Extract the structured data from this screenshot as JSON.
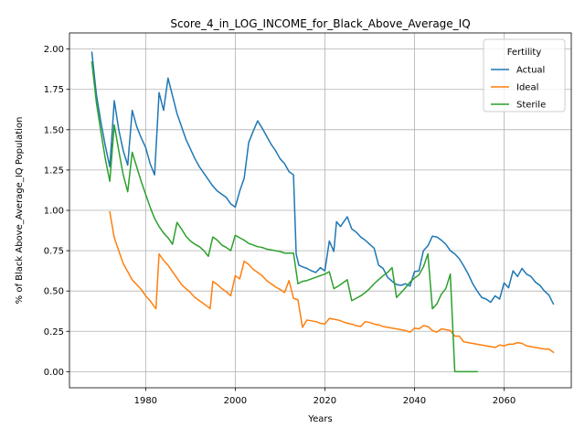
{
  "chart_data": {
    "type": "line",
    "title": "Score_4_in_LOG_INCOME_for_Black_Above_Average_IQ",
    "xlabel": "Years",
    "ylabel": "% of Black Above_Average_IQ Population",
    "xlim": [
      1963,
      2075
    ],
    "ylim": [
      -0.1,
      2.1
    ],
    "xticks": [
      1980,
      2000,
      2020,
      2040,
      2060
    ],
    "yticks": [
      0.0,
      0.25,
      0.5,
      0.75,
      1.0,
      1.25,
      1.5,
      1.75,
      2.0
    ],
    "ytick_labels": [
      "0.00",
      "0.25",
      "0.50",
      "0.75",
      "1.00",
      "1.25",
      "1.50",
      "1.75",
      "2.00"
    ],
    "grid": true,
    "legend": {
      "title": "Fertility",
      "placement": "top-right"
    },
    "series": [
      {
        "name": "Actual",
        "color": "#1f77b4",
        "points": [
          [
            1968,
            1.98
          ],
          [
            1969,
            1.72
          ],
          [
            1970,
            1.55
          ],
          [
            1971,
            1.4
          ],
          [
            1972,
            1.27
          ],
          [
            1973,
            1.68
          ],
          [
            1974,
            1.5
          ],
          [
            1975,
            1.37
          ],
          [
            1976,
            1.28
          ],
          [
            1977,
            1.62
          ],
          [
            1978,
            1.52
          ],
          [
            1979,
            1.45
          ],
          [
            1980,
            1.39
          ],
          [
            1981,
            1.29
          ],
          [
            1982,
            1.22
          ],
          [
            1983,
            1.73
          ],
          [
            1984,
            1.62
          ],
          [
            1985,
            1.82
          ],
          [
            1986,
            1.71
          ],
          [
            1987,
            1.6
          ],
          [
            1988,
            1.52
          ],
          [
            1989,
            1.44
          ],
          [
            1990,
            1.38
          ],
          [
            1991,
            1.32
          ],
          [
            1992,
            1.27
          ],
          [
            1993,
            1.23
          ],
          [
            1994,
            1.19
          ],
          [
            1995,
            1.15
          ],
          [
            1996,
            1.12
          ],
          [
            1997,
            1.1
          ],
          [
            1998,
            1.08
          ],
          [
            1999,
            1.04
          ],
          [
            2000,
            1.02
          ],
          [
            2001,
            1.12
          ],
          [
            2002,
            1.2
          ],
          [
            2003,
            1.42
          ],
          [
            2004,
            1.49
          ],
          [
            2005,
            1.555
          ],
          [
            2006,
            1.51
          ],
          [
            2007,
            1.46
          ],
          [
            2008,
            1.41
          ],
          [
            2009,
            1.37
          ],
          [
            2010,
            1.32
          ],
          [
            2011,
            1.29
          ],
          [
            2012,
            1.24
          ],
          [
            2013,
            1.22
          ],
          [
            2013.6,
            0.73
          ],
          [
            2014.2,
            0.66
          ],
          [
            2015,
            0.65
          ],
          [
            2016,
            0.64
          ],
          [
            2017,
            0.625
          ],
          [
            2018,
            0.615
          ],
          [
            2019,
            0.645
          ],
          [
            2020,
            0.625
          ],
          [
            2021,
            0.81
          ],
          [
            2022,
            0.745
          ],
          [
            2022.6,
            0.93
          ],
          [
            2023.5,
            0.9
          ],
          [
            2024,
            0.92
          ],
          [
            2025,
            0.96
          ],
          [
            2026,
            0.885
          ],
          [
            2027,
            0.865
          ],
          [
            2028,
            0.835
          ],
          [
            2029,
            0.815
          ],
          [
            2030,
            0.79
          ],
          [
            2031,
            0.765
          ],
          [
            2032,
            0.66
          ],
          [
            2033,
            0.64
          ],
          [
            2034,
            0.585
          ],
          [
            2035,
            0.56
          ],
          [
            2036,
            0.54
          ],
          [
            2037,
            0.535
          ],
          [
            2038,
            0.545
          ],
          [
            2039,
            0.53
          ],
          [
            2040,
            0.62
          ],
          [
            2041,
            0.625
          ],
          [
            2042,
            0.75
          ],
          [
            2043,
            0.78
          ],
          [
            2044,
            0.84
          ],
          [
            2045,
            0.835
          ],
          [
            2046,
            0.815
          ],
          [
            2047,
            0.79
          ],
          [
            2048,
            0.75
          ],
          [
            2049,
            0.73
          ],
          [
            2050,
            0.7
          ],
          [
            2051,
            0.655
          ],
          [
            2052,
            0.605
          ],
          [
            2053,
            0.545
          ],
          [
            2054,
            0.5
          ],
          [
            2055,
            0.46
          ],
          [
            2056,
            0.45
          ],
          [
            2057,
            0.43
          ],
          [
            2058,
            0.47
          ],
          [
            2059,
            0.45
          ],
          [
            2060,
            0.55
          ],
          [
            2061,
            0.52
          ],
          [
            2062,
            0.625
          ],
          [
            2063,
            0.59
          ],
          [
            2064,
            0.64
          ],
          [
            2065,
            0.605
          ],
          [
            2066,
            0.59
          ],
          [
            2067,
            0.555
          ],
          [
            2068,
            0.535
          ],
          [
            2069,
            0.5
          ],
          [
            2070,
            0.475
          ],
          [
            2071,
            0.42
          ]
        ]
      },
      {
        "name": "Ideal",
        "color": "#ff7f0e",
        "points": [
          [
            1972,
            0.99
          ],
          [
            1973,
            0.83
          ],
          [
            1974,
            0.75
          ],
          [
            1975,
            0.67
          ],
          [
            1976,
            0.62
          ],
          [
            1977,
            0.57
          ],
          [
            1978,
            0.54
          ],
          [
            1979,
            0.51
          ],
          [
            1980,
            0.47
          ],
          [
            1981,
            0.44
          ],
          [
            1982,
            0.4
          ],
          [
            1982.3,
            0.39
          ],
          [
            1983,
            0.73
          ],
          [
            1984,
            0.69
          ],
          [
            1985,
            0.66
          ],
          [
            1986,
            0.62
          ],
          [
            1987,
            0.58
          ],
          [
            1988,
            0.54
          ],
          [
            1989,
            0.515
          ],
          [
            1990,
            0.49
          ],
          [
            1991,
            0.46
          ],
          [
            1992,
            0.44
          ],
          [
            1993,
            0.42
          ],
          [
            1994,
            0.4
          ],
          [
            1994.4,
            0.39
          ],
          [
            1995,
            0.56
          ],
          [
            1996,
            0.54
          ],
          [
            1997,
            0.515
          ],
          [
            1998,
            0.495
          ],
          [
            1999,
            0.47
          ],
          [
            2000,
            0.595
          ],
          [
            2001,
            0.575
          ],
          [
            2002,
            0.685
          ],
          [
            2003,
            0.665
          ],
          [
            2004,
            0.635
          ],
          [
            2005,
            0.615
          ],
          [
            2006,
            0.595
          ],
          [
            2007,
            0.565
          ],
          [
            2008,
            0.545
          ],
          [
            2009,
            0.525
          ],
          [
            2010,
            0.51
          ],
          [
            2011,
            0.49
          ],
          [
            2012,
            0.565
          ],
          [
            2013,
            0.455
          ],
          [
            2014,
            0.445
          ],
          [
            2015,
            0.275
          ],
          [
            2016,
            0.32
          ],
          [
            2017,
            0.315
          ],
          [
            2018,
            0.31
          ],
          [
            2019,
            0.3
          ],
          [
            2020,
            0.295
          ],
          [
            2021,
            0.33
          ],
          [
            2022,
            0.325
          ],
          [
            2023,
            0.32
          ],
          [
            2024,
            0.31
          ],
          [
            2025,
            0.3
          ],
          [
            2026,
            0.295
          ],
          [
            2027,
            0.285
          ],
          [
            2028,
            0.28
          ],
          [
            2029,
            0.31
          ],
          [
            2030,
            0.305
          ],
          [
            2031,
            0.295
          ],
          [
            2032,
            0.29
          ],
          [
            2033,
            0.28
          ],
          [
            2034,
            0.275
          ],
          [
            2035,
            0.27
          ],
          [
            2036,
            0.265
          ],
          [
            2037,
            0.26
          ],
          [
            2038,
            0.255
          ],
          [
            2039,
            0.245
          ],
          [
            2040,
            0.27
          ],
          [
            2041,
            0.265
          ],
          [
            2042,
            0.285
          ],
          [
            2043,
            0.28
          ],
          [
            2044,
            0.255
          ],
          [
            2045,
            0.245
          ],
          [
            2046,
            0.265
          ],
          [
            2047,
            0.26
          ],
          [
            2048,
            0.255
          ],
          [
            2049,
            0.22
          ],
          [
            2050,
            0.22
          ],
          [
            2051,
            0.185
          ],
          [
            2052,
            0.18
          ],
          [
            2053,
            0.175
          ],
          [
            2054,
            0.17
          ],
          [
            2055,
            0.165
          ],
          [
            2056,
            0.16
          ],
          [
            2057,
            0.155
          ],
          [
            2058,
            0.15
          ],
          [
            2059,
            0.165
          ],
          [
            2060,
            0.16
          ],
          [
            2061,
            0.17
          ],
          [
            2062,
            0.17
          ],
          [
            2063,
            0.18
          ],
          [
            2064,
            0.175
          ],
          [
            2065,
            0.16
          ],
          [
            2066,
            0.155
          ],
          [
            2067,
            0.15
          ],
          [
            2068,
            0.145
          ],
          [
            2069,
            0.14
          ],
          [
            2070,
            0.14
          ],
          [
            2071,
            0.12
          ]
        ]
      },
      {
        "name": "Sterile",
        "color": "#2ca02c",
        "points": [
          [
            1968,
            1.92
          ],
          [
            1969,
            1.67
          ],
          [
            1970,
            1.49
          ],
          [
            1971,
            1.32
          ],
          [
            1972,
            1.18
          ],
          [
            1973,
            1.53
          ],
          [
            1974,
            1.37
          ],
          [
            1975,
            1.22
          ],
          [
            1976,
            1.115
          ],
          [
            1977,
            1.36
          ],
          [
            1978,
            1.27
          ],
          [
            1979,
            1.18
          ],
          [
            1980,
            1.1
          ],
          [
            1981,
            1.02
          ],
          [
            1982,
            0.95
          ],
          [
            1983,
            0.9
          ],
          [
            1984,
            0.86
          ],
          [
            1985,
            0.83
          ],
          [
            1986,
            0.79
          ],
          [
            1987,
            0.925
          ],
          [
            1988,
            0.885
          ],
          [
            1989,
            0.84
          ],
          [
            1990,
            0.81
          ],
          [
            1991,
            0.79
          ],
          [
            1992,
            0.775
          ],
          [
            1993,
            0.75
          ],
          [
            1994,
            0.715
          ],
          [
            1995,
            0.835
          ],
          [
            1996,
            0.815
          ],
          [
            1997,
            0.785
          ],
          [
            1998,
            0.77
          ],
          [
            1999,
            0.75
          ],
          [
            2000,
            0.845
          ],
          [
            2001,
            0.83
          ],
          [
            2002,
            0.815
          ],
          [
            2003,
            0.795
          ],
          [
            2004,
            0.785
          ],
          [
            2005,
            0.775
          ],
          [
            2006,
            0.77
          ],
          [
            2007,
            0.76
          ],
          [
            2008,
            0.755
          ],
          [
            2009,
            0.75
          ],
          [
            2010,
            0.745
          ],
          [
            2011,
            0.735
          ],
          [
            2012,
            0.735
          ],
          [
            2013,
            0.735
          ],
          [
            2014,
            0.545
          ],
          [
            2015,
            0.56
          ],
          [
            2016,
            0.565
          ],
          [
            2017,
            0.575
          ],
          [
            2018,
            0.585
          ],
          [
            2019,
            0.595
          ],
          [
            2020,
            0.605
          ],
          [
            2021,
            0.62
          ],
          [
            2022,
            0.515
          ],
          [
            2023,
            0.53
          ],
          [
            2024,
            0.55
          ],
          [
            2025,
            0.57
          ],
          [
            2026,
            0.44
          ],
          [
            2027,
            0.455
          ],
          [
            2028,
            0.47
          ],
          [
            2029,
            0.49
          ],
          [
            2030,
            0.515
          ],
          [
            2031,
            0.545
          ],
          [
            2032,
            0.57
          ],
          [
            2033,
            0.595
          ],
          [
            2034,
            0.615
          ],
          [
            2035,
            0.645
          ],
          [
            2036,
            0.46
          ],
          [
            2037,
            0.49
          ],
          [
            2038,
            0.52
          ],
          [
            2039,
            0.555
          ],
          [
            2040,
            0.58
          ],
          [
            2041,
            0.6
          ],
          [
            2042,
            0.65
          ],
          [
            2043,
            0.73
          ],
          [
            2044,
            0.39
          ],
          [
            2045,
            0.42
          ],
          [
            2046,
            0.48
          ],
          [
            2047,
            0.515
          ],
          [
            2048,
            0.605
          ],
          [
            2049,
            0.0
          ],
          [
            2050,
            0.0
          ],
          [
            2051,
            0.0
          ],
          [
            2052,
            0.0
          ],
          [
            2053,
            0.0
          ],
          [
            2054,
            0.0
          ]
        ]
      }
    ]
  }
}
